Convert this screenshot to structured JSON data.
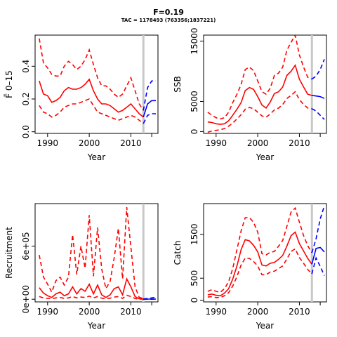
{
  "figure": {
    "title": "F=0.19",
    "subtitle": "TAC = 1178493 (763356;1837221)"
  },
  "colors": {
    "historical": "#ff0000",
    "projection": "#0000ff",
    "reference_line": "#c8c8c8"
  },
  "chart_data": [
    {
      "type": "line",
      "id": "fbar",
      "xlabel": "Year",
      "ylabel": "F̄ 0–15",
      "xlim": [
        1987,
        2016.5
      ],
      "ylim": [
        -0.01,
        0.59
      ],
      "xticks": [
        1990,
        2000,
        2010
      ],
      "yticks": [
        0.0,
        0.2,
        0.4
      ],
      "ytick_labels": [
        "0.0",
        "0.2",
        "0.4"
      ],
      "vline": 2013,
      "series": [
        {
          "role": "median",
          "color": "historical",
          "style": "solid",
          "x": [
            1988,
            1989,
            1990,
            1991,
            1992,
            1993,
            1994,
            1995,
            1996,
            1997,
            1998,
            1999,
            2000,
            2001,
            2002,
            2003,
            2004,
            2005,
            2006,
            2007,
            2008,
            2009,
            2010,
            2011,
            2012,
            2013
          ],
          "y": [
            0.31,
            0.23,
            0.22,
            0.18,
            0.19,
            0.21,
            0.25,
            0.27,
            0.26,
            0.26,
            0.27,
            0.29,
            0.32,
            0.25,
            0.2,
            0.17,
            0.17,
            0.16,
            0.14,
            0.12,
            0.13,
            0.15,
            0.17,
            0.14,
            0.11,
            0.09
          ]
        },
        {
          "role": "upper",
          "color": "historical",
          "style": "dash",
          "x": [
            1988,
            1989,
            1990,
            1991,
            1992,
            1993,
            1994,
            1995,
            1996,
            1997,
            1998,
            1999,
            2000,
            2001,
            2002,
            2003,
            2004,
            2005,
            2006,
            2007,
            2008,
            2009,
            2010,
            2011,
            2012,
            2013
          ],
          "y": [
            0.57,
            0.42,
            0.39,
            0.35,
            0.34,
            0.34,
            0.4,
            0.43,
            0.41,
            0.38,
            0.4,
            0.44,
            0.5,
            0.41,
            0.33,
            0.28,
            0.28,
            0.26,
            0.23,
            0.21,
            0.23,
            0.28,
            0.33,
            0.25,
            0.17,
            0.13
          ]
        },
        {
          "role": "lower",
          "color": "historical",
          "style": "dash",
          "x": [
            1988,
            1989,
            1990,
            1991,
            1992,
            1993,
            1994,
            1995,
            1996,
            1997,
            1998,
            1999,
            2000,
            2001,
            2002,
            2003,
            2004,
            2005,
            2006,
            2007,
            2008,
            2009,
            2010,
            2011,
            2012,
            2013
          ],
          "y": [
            0.16,
            0.12,
            0.11,
            0.09,
            0.1,
            0.12,
            0.15,
            0.16,
            0.17,
            0.17,
            0.18,
            0.19,
            0.2,
            0.16,
            0.12,
            0.11,
            0.1,
            0.09,
            0.08,
            0.07,
            0.08,
            0.09,
            0.1,
            0.09,
            0.07,
            0.05
          ]
        },
        {
          "role": "projection-median",
          "color": "projection",
          "style": "solid",
          "x": [
            2013,
            2014,
            2015,
            2016
          ],
          "y": [
            0.09,
            0.17,
            0.19,
            0.19
          ]
        },
        {
          "role": "projection-upper",
          "color": "projection",
          "style": "dash",
          "x": [
            2013,
            2014,
            2015,
            2016
          ],
          "y": [
            0.13,
            0.27,
            0.31,
            0.31
          ]
        },
        {
          "role": "projection-lower",
          "color": "projection",
          "style": "dash",
          "x": [
            2013,
            2014,
            2015,
            2016
          ],
          "y": [
            0.05,
            0.1,
            0.11,
            0.11
          ]
        }
      ]
    },
    {
      "type": "line",
      "id": "ssb",
      "xlabel": "Year",
      "ylabel": "SSB",
      "xlim": [
        1987,
        2016.5
      ],
      "ylim": [
        -300,
        16000
      ],
      "xticks": [
        1990,
        2000,
        2010
      ],
      "yticks": [
        0,
        5000,
        15000
      ],
      "ytick_labels": [
        "0",
        "5000",
        "15000"
      ],
      "vline": 2013,
      "series": [
        {
          "role": "median",
          "color": "historical",
          "style": "solid",
          "x": [
            1988,
            1989,
            1990,
            1991,
            1992,
            1993,
            1994,
            1995,
            1996,
            1997,
            1998,
            1999,
            2000,
            2001,
            2002,
            2003,
            2004,
            2005,
            2006,
            2007,
            2008,
            2009,
            2010,
            2011,
            2012,
            2013
          ],
          "y": [
            1600,
            1500,
            1300,
            1200,
            1300,
            1800,
            2700,
            3700,
            4800,
            6800,
            7300,
            7000,
            5800,
            4400,
            3900,
            4900,
            6300,
            6600,
            7400,
            9300,
            10000,
            11000,
            8700,
            7400,
            6200,
            6000
          ]
        },
        {
          "role": "upper",
          "color": "historical",
          "style": "dash",
          "x": [
            1988,
            1989,
            1990,
            1991,
            1992,
            1993,
            1994,
            1995,
            1996,
            1997,
            1998,
            1999,
            2000,
            2001,
            2002,
            2003,
            2004,
            2005,
            2006,
            2007,
            2008,
            2009,
            2010,
            2011,
            2012,
            2013
          ],
          "y": [
            3200,
            2700,
            2300,
            2100,
            2300,
            3200,
            4800,
            6200,
            7800,
            10300,
            10700,
            10100,
            8400,
            6600,
            6200,
            7200,
            9300,
            9700,
            10700,
            13500,
            14800,
            16000,
            12700,
            10700,
            9000,
            8700
          ]
        },
        {
          "role": "lower",
          "color": "historical",
          "style": "dash",
          "x": [
            1988,
            1989,
            1990,
            1991,
            1992,
            1993,
            1994,
            1995,
            1996,
            1997,
            1998,
            1999,
            2000,
            2001,
            2002,
            2003,
            2004,
            2005,
            2006,
            2007,
            2008,
            2009,
            2010,
            2011,
            2012,
            2013
          ],
          "y": [
            -100,
            100,
            200,
            300,
            500,
            900,
            1400,
            2100,
            2800,
            3700,
            4000,
            3800,
            3200,
            2600,
            2400,
            2900,
            3600,
            3900,
            4500,
            5500,
            6000,
            6600,
            5300,
            4500,
            3900,
            3800
          ]
        },
        {
          "role": "projection-median",
          "color": "projection",
          "style": "solid",
          "x": [
            2013,
            2014,
            2015,
            2016
          ],
          "y": [
            6000,
            5900,
            5800,
            5500
          ]
        },
        {
          "role": "projection-upper",
          "color": "projection",
          "style": "dash",
          "x": [
            2013,
            2014,
            2015,
            2016
          ],
          "y": [
            8700,
            9200,
            10300,
            12000
          ]
        },
        {
          "role": "projection-lower",
          "color": "projection",
          "style": "dash",
          "x": [
            2013,
            2014,
            2015,
            2016
          ],
          "y": [
            3800,
            3400,
            2700,
            2000
          ]
        }
      ]
    },
    {
      "type": "line",
      "id": "recruitment",
      "xlabel": "Year",
      "ylabel": "Recruitment",
      "xlim": [
        1987,
        2016.5
      ],
      "ylim": [
        -30000,
        1080000
      ],
      "xticks": [
        1990,
        2000,
        2010
      ],
      "yticks": [
        0,
        600000
      ],
      "ytick_labels": [
        "0e+00",
        "6e+05"
      ],
      "vline": 2013,
      "series": [
        {
          "role": "median",
          "color": "historical",
          "style": "solid",
          "x": [
            1988,
            1989,
            1990,
            1991,
            1992,
            1993,
            1994,
            1995,
            1996,
            1997,
            1998,
            1999,
            2000,
            2001,
            2002,
            2003,
            2004,
            2005,
            2006,
            2007,
            2008,
            2009,
            2010,
            2011,
            2012,
            2013
          ],
          "y": [
            130000,
            70000,
            40000,
            20000,
            60000,
            80000,
            40000,
            60000,
            140000,
            60000,
            120000,
            90000,
            170000,
            60000,
            160000,
            50000,
            20000,
            50000,
            120000,
            140000,
            50000,
            230000,
            140000,
            30000,
            5000,
            5000
          ]
        },
        {
          "role": "upper",
          "color": "historical",
          "style": "dash",
          "x": [
            1988,
            1989,
            1990,
            1991,
            1992,
            1993,
            1994,
            1995,
            1996,
            1997,
            1998,
            1999,
            2000,
            2001,
            2002,
            2003,
            2004,
            2005,
            2006,
            2007,
            2008,
            2009,
            2010,
            2011,
            2012,
            2013
          ],
          "y": [
            500000,
            250000,
            170000,
            80000,
            210000,
            250000,
            160000,
            250000,
            730000,
            280000,
            600000,
            350000,
            950000,
            260000,
            810000,
            340000,
            120000,
            200000,
            470000,
            800000,
            230000,
            1040000,
            590000,
            140000,
            20000,
            10000
          ]
        },
        {
          "role": "lower",
          "color": "historical",
          "style": "dash",
          "x": [
            1988,
            1989,
            1990,
            1991,
            1992,
            1993,
            1994,
            1995,
            1996,
            1997,
            1998,
            1999,
            2000,
            2001,
            2002,
            2003,
            2004,
            2005,
            2006,
            2007,
            2008,
            2009,
            2010,
            2011,
            2012,
            2013
          ],
          "y": [
            30000,
            15000,
            10000,
            5000,
            15000,
            20000,
            10000,
            15000,
            30000,
            15000,
            25000,
            20000,
            35000,
            15000,
            30000,
            12000,
            5000,
            12000,
            25000,
            30000,
            10000,
            45000,
            30000,
            8000,
            1000,
            1000
          ]
        },
        {
          "role": "projection-median",
          "color": "projection",
          "style": "solid",
          "x": [
            2013,
            2014,
            2015,
            2016
          ],
          "y": [
            2000,
            2000,
            2000,
            2000
          ]
        },
        {
          "role": "projection-upper",
          "color": "projection",
          "style": "dash",
          "x": [
            2013,
            2014,
            2015,
            2016
          ],
          "y": [
            3000,
            8000,
            15000,
            22000
          ]
        },
        {
          "role": "projection-lower",
          "color": "projection",
          "style": "dash",
          "x": [
            2013,
            2014,
            2015,
            2016
          ],
          "y": [
            0,
            0,
            0,
            0
          ]
        }
      ]
    },
    {
      "type": "line",
      "id": "catch",
      "xlabel": "Year",
      "ylabel": "Catch",
      "xlim": [
        1987,
        2016.5
      ],
      "ylim": [
        -40,
        2200
      ],
      "xticks": [
        1990,
        2000,
        2010
      ],
      "yticks": [
        0,
        500,
        1500
      ],
      "ytick_labels": [
        "0",
        "500",
        "1500"
      ],
      "vline": 2013,
      "series": [
        {
          "role": "median",
          "color": "historical",
          "style": "solid",
          "x": [
            1988,
            1989,
            1990,
            1991,
            1992,
            1993,
            1994,
            1995,
            1996,
            1997,
            1998,
            1999,
            2000,
            2001,
            2002,
            2003,
            2004,
            2005,
            2006,
            2007,
            2008,
            2009,
            2010,
            2011,
            2012,
            2013
          ],
          "y": [
            120,
            140,
            110,
            100,
            160,
            260,
            480,
            780,
            1150,
            1380,
            1350,
            1250,
            1100,
            800,
            780,
            840,
            860,
            930,
            1020,
            1230,
            1470,
            1550,
            1290,
            1120,
            950,
            820
          ]
        },
        {
          "role": "upper",
          "color": "historical",
          "style": "dash",
          "x": [
            1988,
            1989,
            1990,
            1991,
            1992,
            1993,
            1994,
            1995,
            1996,
            1997,
            1998,
            1999,
            2000,
            2001,
            2002,
            2003,
            2004,
            2005,
            2006,
            2007,
            2008,
            2009,
            2010,
            2011,
            2012,
            2013
          ],
          "y": [
            200,
            240,
            200,
            180,
            260,
            420,
            720,
            1150,
            1580,
            1880,
            1880,
            1770,
            1550,
            1060,
            1030,
            1090,
            1110,
            1230,
            1360,
            1680,
            2010,
            2100,
            1780,
            1470,
            1240,
            1080
          ]
        },
        {
          "role": "lower",
          "color": "historical",
          "style": "dash",
          "x": [
            1988,
            1989,
            1990,
            1991,
            1992,
            1993,
            1994,
            1995,
            1996,
            1997,
            1998,
            1999,
            2000,
            2001,
            2002,
            2003,
            2004,
            2005,
            2006,
            2007,
            2008,
            2009,
            2010,
            2011,
            2012,
            2013
          ],
          "y": [
            70,
            80,
            60,
            60,
            100,
            170,
            320,
            540,
            800,
            960,
            950,
            880,
            780,
            580,
            580,
            640,
            660,
            720,
            780,
            940,
            1110,
            1170,
            970,
            840,
            700,
            600
          ]
        },
        {
          "role": "projection-median",
          "color": "projection",
          "style": "solid",
          "x": [
            2013,
            2014,
            2015,
            2016
          ],
          "y": [
            820,
            1180,
            1200,
            1100
          ]
        },
        {
          "role": "projection-upper",
          "color": "projection",
          "style": "dash",
          "x": [
            2013,
            2014,
            2015,
            2016
          ],
          "y": [
            1080,
            1400,
            1850,
            2150
          ]
        },
        {
          "role": "projection-lower",
          "color": "projection",
          "style": "dash",
          "x": [
            2013,
            2014,
            2015,
            2016
          ],
          "y": [
            600,
            960,
            770,
            560
          ]
        }
      ]
    }
  ]
}
